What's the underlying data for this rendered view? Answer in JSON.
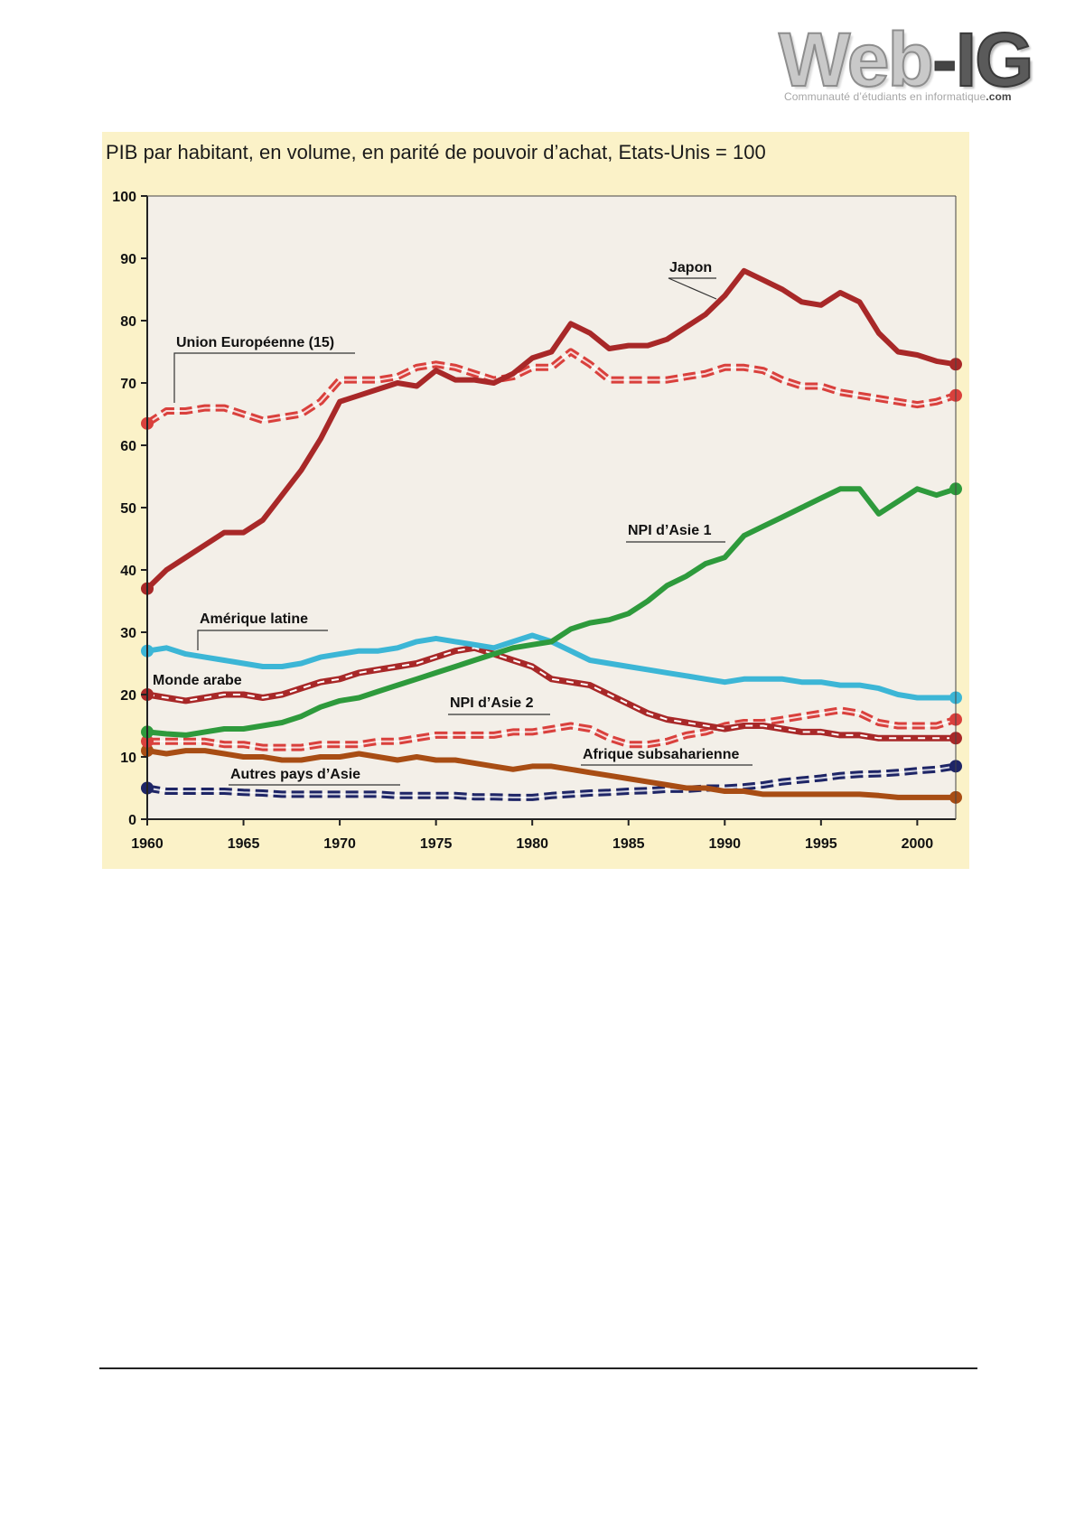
{
  "logo": {
    "web": "Web",
    "dash": "-",
    "ig": "IG",
    "tagline": "Communauté d’étudiants en informatique",
    "tagline_suffix": ".com"
  },
  "chart_data": {
    "type": "line",
    "title": "PIB par habitant, en volume, en parité de pouvoir d’achat, Etats-Unis = 100",
    "xlabel": "",
    "ylabel": "",
    "xlim": [
      1960,
      2002
    ],
    "ylim": [
      0,
      100
    ],
    "grid": false,
    "legend": "inline labels",
    "x_ticks": [
      1960,
      1965,
      1970,
      1975,
      1980,
      1985,
      1990,
      1995,
      2000
    ],
    "y_ticks": [
      0,
      10,
      20,
      30,
      40,
      50,
      60,
      70,
      80,
      90,
      100
    ],
    "colors": {
      "background": "#fbf2c8",
      "plot_area": "#f3efe8",
      "axis": "#222222",
      "dark_red": "#a82828",
      "red": "#d9403c",
      "green": "#2e9a3c",
      "cyan": "#3cb6d6",
      "brown": "#a84d14",
      "navy": "#1e2566"
    },
    "series": [
      {
        "name": "Japon",
        "color": "#a82828",
        "style": "solid",
        "x": [
          1960,
          1961,
          1962,
          1963,
          1964,
          1965,
          1966,
          1967,
          1968,
          1969,
          1970,
          1971,
          1972,
          1973,
          1974,
          1975,
          1976,
          1977,
          1978,
          1979,
          1980,
          1981,
          1982,
          1983,
          1984,
          1985,
          1986,
          1987,
          1988,
          1989,
          1990,
          1991,
          1992,
          1993,
          1994,
          1995,
          1996,
          1997,
          1998,
          1999,
          2000,
          2001,
          2002
        ],
        "values": [
          37,
          40,
          42,
          44,
          46,
          46,
          48,
          52,
          56,
          61,
          67,
          68,
          69,
          70,
          69.5,
          72,
          70.5,
          70.5,
          70,
          71.5,
          74,
          75,
          79.5,
          78,
          75.5,
          76,
          76,
          77,
          79,
          81,
          84,
          88,
          86.5,
          85,
          83,
          82.5,
          84.5,
          83,
          78,
          75,
          74.5,
          73.5,
          73
        ]
      },
      {
        "name": "Union Européenne (15)",
        "color": "#d9403c",
        "style": "dashed",
        "x": [
          1960,
          1961,
          1962,
          1963,
          1964,
          1965,
          1966,
          1967,
          1968,
          1969,
          1970,
          1971,
          1972,
          1973,
          1974,
          1975,
          1976,
          1977,
          1978,
          1979,
          1980,
          1981,
          1982,
          1983,
          1984,
          1985,
          1986,
          1987,
          1988,
          1989,
          1990,
          1991,
          1992,
          1993,
          1994,
          1995,
          1996,
          1997,
          1998,
          1999,
          2000,
          2001,
          2002
        ],
        "values": [
          63.5,
          65.5,
          65.5,
          66,
          66,
          65,
          64,
          64.5,
          65,
          67,
          70.5,
          70.5,
          70.5,
          71,
          72.5,
          73,
          72.5,
          71.5,
          70.5,
          71,
          72.5,
          72.5,
          75,
          73,
          70.5,
          70.5,
          70.5,
          70.5,
          71,
          71.5,
          72.5,
          72.5,
          72,
          70.5,
          69.5,
          69.5,
          68.5,
          68,
          67.5,
          67,
          66.5,
          67,
          68
        ]
      },
      {
        "name": "NPI d’Asie 1",
        "color": "#2e9a3c",
        "style": "solid",
        "x": [
          1960,
          1961,
          1962,
          1963,
          1964,
          1965,
          1966,
          1967,
          1968,
          1969,
          1970,
          1971,
          1972,
          1973,
          1974,
          1975,
          1976,
          1977,
          1978,
          1979,
          1980,
          1981,
          1982,
          1983,
          1984,
          1985,
          1986,
          1987,
          1988,
          1989,
          1990,
          1991,
          1992,
          1993,
          1994,
          1995,
          1996,
          1997,
          1998,
          1999,
          2000,
          2001,
          2002
        ],
        "values": [
          14,
          13.7,
          13.5,
          14,
          14.5,
          14.5,
          15,
          15.5,
          16.5,
          18,
          19,
          19.5,
          20.5,
          21.5,
          22.5,
          23.5,
          24.5,
          25.5,
          26.5,
          27.5,
          28,
          28.5,
          30.5,
          31.5,
          32,
          33,
          35,
          37.5,
          39,
          41,
          42,
          45.5,
          47,
          48.5,
          50,
          51.5,
          53,
          53,
          49,
          51,
          53,
          52,
          53
        ]
      },
      {
        "name": "Amérique latine",
        "color": "#3cb6d6",
        "style": "solid",
        "x": [
          1960,
          1961,
          1962,
          1963,
          1964,
          1965,
          1966,
          1967,
          1968,
          1969,
          1970,
          1971,
          1972,
          1973,
          1974,
          1975,
          1976,
          1977,
          1978,
          1979,
          1980,
          1981,
          1982,
          1983,
          1984,
          1985,
          1986,
          1987,
          1988,
          1989,
          1990,
          1991,
          1992,
          1993,
          1994,
          1995,
          1996,
          1997,
          1998,
          1999,
          2000,
          2001,
          2002
        ],
        "values": [
          27,
          27.5,
          26.5,
          26,
          25.5,
          25,
          24.5,
          24.5,
          25,
          26,
          26.5,
          27,
          27,
          27.5,
          28.5,
          29,
          28.5,
          28,
          27.5,
          28.5,
          29.5,
          28.5,
          27,
          25.5,
          25,
          24.5,
          24,
          23.5,
          23,
          22.5,
          22,
          22.5,
          22.5,
          22.5,
          22,
          22,
          21.5,
          21.5,
          21,
          20,
          19.5,
          19.5,
          19.5
        ]
      },
      {
        "name": "Monde arabe",
        "color": "#a82828",
        "style": "solid-dashed-white",
        "x": [
          1960,
          1961,
          1962,
          1963,
          1964,
          1965,
          1966,
          1967,
          1968,
          1969,
          1970,
          1971,
          1972,
          1973,
          1974,
          1975,
          1976,
          1977,
          1978,
          1979,
          1980,
          1981,
          1982,
          1983,
          1984,
          1985,
          1986,
          1987,
          1988,
          1989,
          1990,
          1991,
          1992,
          1993,
          1994,
          1995,
          1996,
          1997,
          1998,
          1999,
          2000,
          2001,
          2002
        ],
        "values": [
          20,
          19.5,
          19,
          19.5,
          20,
          20,
          19.5,
          20,
          21,
          22,
          22.5,
          23.5,
          24,
          24.5,
          25,
          26,
          27,
          27.5,
          26.5,
          25.5,
          24.5,
          22.5,
          22,
          21.5,
          20,
          18.5,
          17,
          16,
          15.5,
          15,
          14.5,
          15,
          15,
          14.5,
          14,
          14,
          13.5,
          13.5,
          13,
          13,
          13,
          13,
          13
        ]
      },
      {
        "name": "NPI d’Asie 2",
        "color": "#d9403c",
        "style": "dashed",
        "x": [
          1960,
          1961,
          1962,
          1963,
          1964,
          1965,
          1966,
          1967,
          1968,
          1969,
          1970,
          1971,
          1972,
          1973,
          1974,
          1975,
          1976,
          1977,
          1978,
          1979,
          1980,
          1981,
          1982,
          1983,
          1984,
          1985,
          1986,
          1987,
          1988,
          1989,
          1990,
          1991,
          1992,
          1993,
          1994,
          1995,
          1996,
          1997,
          1998,
          1999,
          2000,
          2001,
          2002
        ],
        "values": [
          12.5,
          12.5,
          12.5,
          12.5,
          12,
          12,
          11.5,
          11.5,
          11.5,
          12,
          12,
          12,
          12.5,
          12.5,
          13,
          13.5,
          13.5,
          13.5,
          13.5,
          14,
          14,
          14.5,
          15,
          14.5,
          13,
          12,
          12,
          12.5,
          13.5,
          14,
          15,
          15.5,
          15.5,
          16,
          16.5,
          17,
          17.5,
          17,
          15.5,
          15,
          15,
          15,
          16
        ]
      },
      {
        "name": "Afrique subsaharienne",
        "color": "#a84d14",
        "style": "solid",
        "x": [
          1960,
          1961,
          1962,
          1963,
          1964,
          1965,
          1966,
          1967,
          1968,
          1969,
          1970,
          1971,
          1972,
          1973,
          1974,
          1975,
          1976,
          1977,
          1978,
          1979,
          1980,
          1981,
          1982,
          1983,
          1984,
          1985,
          1986,
          1987,
          1988,
          1989,
          1990,
          1991,
          1992,
          1993,
          1994,
          1995,
          1996,
          1997,
          1998,
          1999,
          2000,
          2001,
          2002
        ],
        "values": [
          11,
          10.5,
          11,
          11,
          10.5,
          10,
          10,
          9.5,
          9.5,
          10,
          10,
          10.5,
          10,
          9.5,
          10,
          9.5,
          9.5,
          9,
          8.5,
          8,
          8.5,
          8.5,
          8,
          7.5,
          7,
          6.5,
          6,
          5.5,
          5,
          5,
          4.5,
          4.5,
          4,
          4,
          4,
          4,
          4,
          4,
          3.8,
          3.5,
          3.5,
          3.5,
          3.5
        ]
      },
      {
        "name": "Autres pays d’Asie",
        "color": "#1e2566",
        "style": "dashed",
        "x": [
          1960,
          1961,
          1962,
          1963,
          1964,
          1965,
          1966,
          1967,
          1968,
          1969,
          1970,
          1971,
          1972,
          1973,
          1974,
          1975,
          1976,
          1977,
          1978,
          1979,
          1980,
          1981,
          1982,
          1983,
          1984,
          1985,
          1986,
          1987,
          1988,
          1989,
          1990,
          1991,
          1992,
          1993,
          1994,
          1995,
          1996,
          1997,
          1998,
          1999,
          2000,
          2001,
          2002
        ],
        "values": [
          5,
          4.5,
          4.5,
          4.5,
          4.5,
          4.3,
          4.2,
          4,
          4,
          4,
          4,
          4,
          4,
          3.8,
          3.8,
          3.8,
          3.8,
          3.6,
          3.6,
          3.5,
          3.5,
          3.8,
          4,
          4.2,
          4.3,
          4.5,
          4.6,
          4.8,
          4.8,
          5,
          5,
          5.2,
          5.5,
          6,
          6.3,
          6.6,
          7,
          7.2,
          7.3,
          7.5,
          7.8,
          8,
          8.5
        ]
      }
    ]
  }
}
